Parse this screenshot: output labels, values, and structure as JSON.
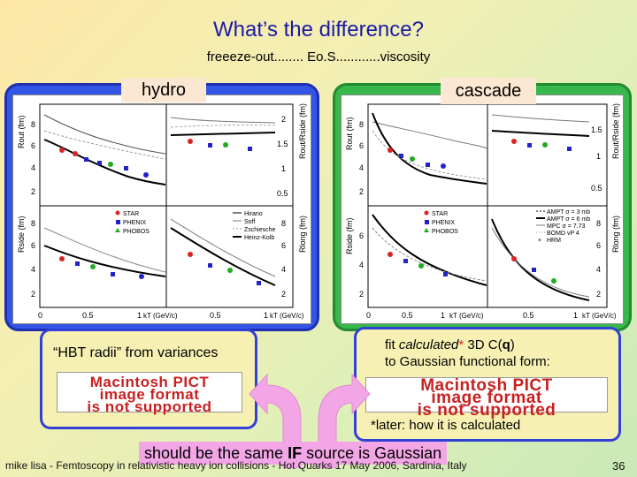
{
  "slide": {
    "title": "What’s the difference?",
    "subtitle": "freeeze-out........ Eo.S............viscosity",
    "hydro_label": "hydro",
    "cascade_label": "cascade",
    "hbt_text": "“HBT radii” from variances",
    "fit_text_1": "fit ",
    "fit_text_calc": "calculated",
    "fit_text_star": "*",
    "fit_text_2": " 3D C(",
    "fit_text_q": "q",
    "fit_text_3": ")",
    "fit_text_line2": "to Gaussian functional form:",
    "pict_line1": "Macintosh PICT",
    "pict_line2": "image format",
    "pict_line3": "is not supported",
    "later_note": "*later: how it is calculated",
    "bottom_pre": "should be the same ",
    "bottom_if": "IF",
    "bottom_post": " source is Gaussian",
    "footer_text": "mike lisa - Femtoscopy in relativistic heavy ion collisions - Hot Quarks 17 May 2006, Sardinia, Italy",
    "page_number": "36"
  },
  "hydro_plot": {
    "y_axis_labels": [
      "Rout (fm)",
      "Rside (fm)"
    ],
    "right_axis_labels": [
      "Rout/Rside (fm)",
      "Rlong (fm)"
    ],
    "y_ticks_top": [
      "8",
      "6",
      "4",
      "2"
    ],
    "y_ticks_bottom": [
      "8",
      "6",
      "4",
      "2"
    ],
    "right_ticks_top": [
      "2",
      "1.5",
      "1",
      "0.5"
    ],
    "right_ticks_bottom": [
      "8",
      "6",
      "4",
      "2"
    ],
    "x_ticks": [
      "0",
      "0.5",
      "1",
      "0.5",
      "1"
    ],
    "x_labels": [
      "kT (GeV/c)",
      "kT (GeV/c)"
    ],
    "legend_data": [
      "STAR",
      "PHENIX",
      "PHOBOS"
    ],
    "legend_models": [
      "Hirano",
      "Soff",
      "Zschiesche",
      "Heinz-Kolb"
    ]
  },
  "cascade_plot": {
    "y_axis_labels": [
      "Rout (fm)",
      "Rside (fm)"
    ],
    "right_axis_labels": [
      "Rout/Rside (fm)",
      "Rlong (fm)"
    ],
    "y_ticks_top": [
      "8",
      "6",
      "4",
      "2"
    ],
    "y_ticks_bottom": [
      "6",
      "4",
      "2"
    ],
    "right_ticks_top": [
      "1.5",
      "1",
      "0.5"
    ],
    "right_ticks_bottom": [
      "8",
      "6",
      "4",
      "2"
    ],
    "x_ticks": [
      "0",
      "0.5",
      "1",
      "0.5",
      "1"
    ],
    "x_labels": [
      "kT (GeV/c)",
      "kT (GeV/c)"
    ],
    "legend_data": [
      "STAR",
      "PHENIX",
      "PHOBOS"
    ],
    "legend_models": [
      "AMPT σ = 3 mb",
      "AMPT σ = 6 mb",
      "MPC σ = 7.73",
      "BOMD vP 4",
      "HRM"
    ]
  },
  "colors": {
    "title": "#1a1aa8",
    "hydro_frame": "#3355e6",
    "cascade_frame": "#37b84a",
    "label_box": "#fce7d2",
    "pict_text": "#c82020",
    "arrow": "#f3a6e6"
  }
}
